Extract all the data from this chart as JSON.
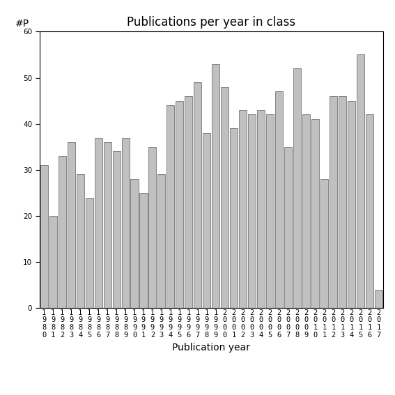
{
  "title": "Publications per year in class",
  "xlabel": "Publication year",
  "ylabel": "#P",
  "ylim": [
    0,
    60
  ],
  "yticks": [
    0,
    10,
    20,
    30,
    40,
    50,
    60
  ],
  "years": [
    "1980",
    "1981",
    "1982",
    "1983",
    "1984",
    "1985",
    "1986",
    "1987",
    "1988",
    "1989",
    "1990",
    "1991",
    "1992",
    "1993",
    "1994",
    "1995",
    "1996",
    "1997",
    "1998",
    "1999",
    "2000",
    "2001",
    "2002",
    "2003",
    "2004",
    "2005",
    "2006",
    "2007",
    "2008",
    "2009",
    "2010",
    "2011",
    "2012",
    "2013",
    "2014",
    "2015",
    "2016",
    "2017"
  ],
  "values": [
    31,
    20,
    33,
    36,
    29,
    24,
    37,
    36,
    34,
    37,
    28,
    25,
    35,
    29,
    44,
    45,
    46,
    49,
    38,
    53,
    48,
    39,
    43,
    42,
    43,
    42,
    47,
    35,
    52,
    42,
    41,
    28,
    46,
    46,
    45,
    55,
    42,
    4
  ],
  "bar_color": "#c0c0c0",
  "bar_edgecolor": "#606060",
  "background_color": "#ffffff",
  "title_fontsize": 12,
  "label_fontsize": 10,
  "tick_fontsize": 7.5
}
